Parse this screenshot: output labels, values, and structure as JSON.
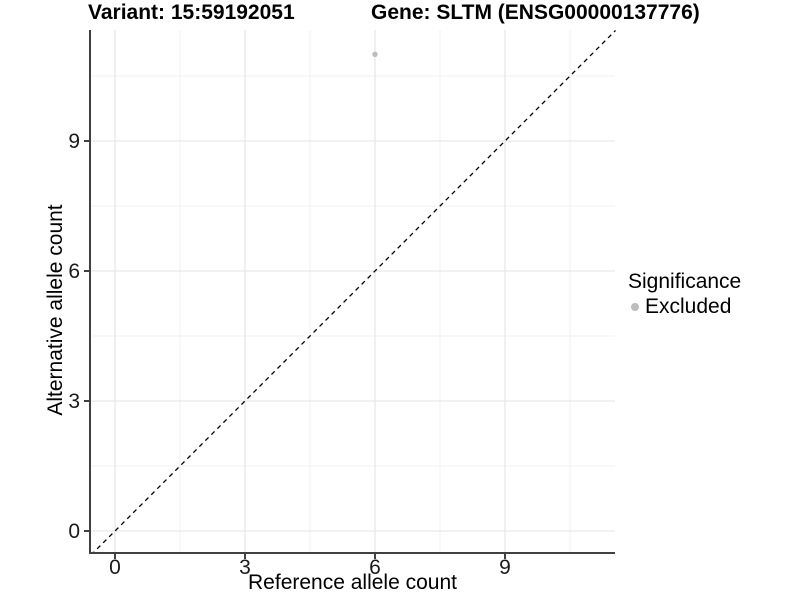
{
  "chart_data": {
    "type": "scatter",
    "title_left": "Variant: 15:59192051",
    "title_right": "Gene: SLTM (ENSG00000137776)",
    "xlabel": "Reference allele count",
    "ylabel": "Alternative allele count",
    "xlim": [
      -0.55,
      11.55
    ],
    "ylim": [
      -0.55,
      11.55
    ],
    "x_major_ticks": [
      0,
      3,
      6,
      9
    ],
    "y_major_ticks": [
      0,
      3,
      6,
      9
    ],
    "x_minor_ticks": [
      1.5,
      4.5,
      7.5,
      10.5
    ],
    "y_minor_ticks": [
      1.5,
      4.5,
      7.5,
      10.5
    ],
    "grid": "major+minor",
    "identity_line": {
      "style": "dashed",
      "color": "#000000",
      "from": [
        -0.55,
        -0.55
      ],
      "to": [
        11.55,
        11.55
      ]
    },
    "series": [
      {
        "name": "Excluded",
        "color": "#bdbdbd",
        "point_radius": 2.7,
        "points": [
          {
            "x": 6,
            "y": 11
          }
        ]
      }
    ],
    "legend": {
      "title": "Significance",
      "position": "right",
      "entries": [
        {
          "label": "Excluded",
          "color": "#bdbdbd"
        }
      ]
    }
  },
  "colors": {
    "background": "#ffffff",
    "axis_line": "#404040",
    "tick_label": "#1a1a1a",
    "grid_major": "#e3e3e3",
    "grid_minor": "#f0f0f0",
    "title_text": "#000000"
  }
}
